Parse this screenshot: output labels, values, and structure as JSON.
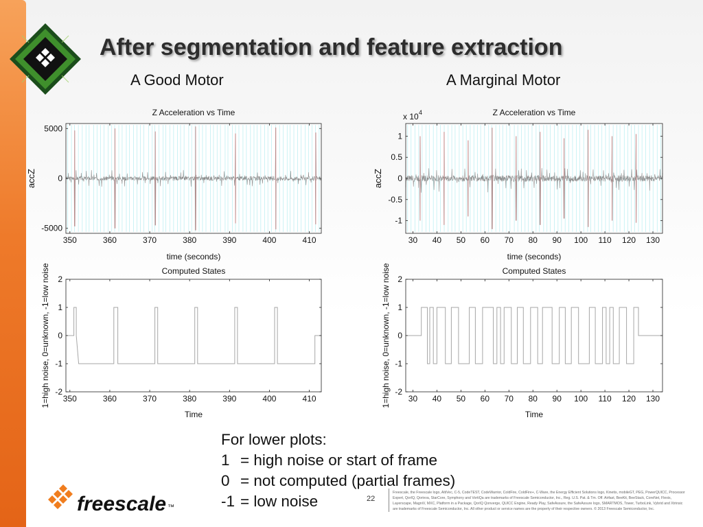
{
  "slide": {
    "title": "After segmentation and feature extraction",
    "left_heading": "A Good Motor",
    "right_heading": "A Marginal Motor",
    "page_number": "22",
    "legal": "Freescale, the Freescale logo, AltiVec, C-5, CodeTEST, CodeWarrior, ColdFire, ColdFire+, C-Ware, the Energy Efficient Solutions logo, Kinetis, mobileGT, PEG, PowerQUICC, Processor Expert, QorIQ, Qorivva, StarCore, Symphony and VortiQa are trademarks of Freescale Semiconductor, Inc., Reg. U.S. Pat. & Tm. Off. Airfast, BeeKit, BeeStack, CoreNet, Flexis, Layerscape, MagniV, MXC, Platform in a Package, QorIQ Qonverge, QUICC Engine, Ready Play, SafeAssure, the SafeAssure logo, SMARTMOS, Tower, TurboLink, Vybrid and Xtrinsic are trademarks of Freescale Semiconductor, Inc. All other product or service names are the property of their respective owners. © 2013 Freescale Semiconductor, Inc.",
    "logo_text": "freescale",
    "logo_tm": "™",
    "icons": [
      "chip-logo-icon",
      "freescale-logo-icon"
    ]
  },
  "notes": {
    "heading": "For lower plots:",
    "items": [
      {
        "value": "1",
        "text": "= high noise or start of frame"
      },
      {
        "value": "0",
        "text": "= not computed (partial frames)"
      },
      {
        "value": "-1",
        "text": "= low noise"
      }
    ]
  },
  "chart_data": [
    {
      "id": "good-accel",
      "type": "line",
      "title": "Z Acceleration vs Time",
      "xlabel": "time (seconds)",
      "ylabel": "accZ",
      "xlim": [
        349,
        413
      ],
      "ylim": [
        -5500,
        5500
      ],
      "xticks": [
        350,
        360,
        370,
        380,
        390,
        400,
        410
      ],
      "yticks": [
        -5000,
        0,
        5000
      ],
      "ytick_labels": [
        "-5000",
        "0",
        "5000"
      ],
      "exponent_label": "",
      "series": [
        {
          "color": "#8c8c8c",
          "baseline": 0,
          "spikes": [
            {
              "x": 351.2,
              "amp": 4800
            },
            {
              "x": 361.3,
              "amp": 5000
            },
            {
              "x": 371.4,
              "amp": 4700
            },
            {
              "x": 381.5,
              "amp": 5200
            },
            {
              "x": 391.5,
              "amp": 4500
            },
            {
              "x": 401.6,
              "amp": 5100
            },
            {
              "x": 411.6,
              "amp": 4600
            }
          ],
          "noise_amp": 700
        }
      ],
      "grid": false
    },
    {
      "id": "good-states",
      "type": "line",
      "title": "Computed States",
      "xlabel": "Time",
      "ylabel": "1=high noise, 0=unknown, -1=low noise",
      "xlim": [
        349,
        413
      ],
      "ylim": [
        -2,
        2
      ],
      "xticks": [
        350,
        360,
        370,
        380,
        390,
        400,
        410
      ],
      "yticks": [
        -2,
        -1,
        0,
        1,
        2
      ],
      "ytick_labels": [
        "-2",
        "-1",
        "0",
        "1",
        "2"
      ],
      "series": [
        {
          "color": "#a6a6a6",
          "x": [
            349,
            351.0,
            351.0,
            351.6,
            351.6,
            352.2,
            352.2,
            361.0,
            361.0,
            362.0,
            362.0,
            371.3,
            371.3,
            372.0,
            372.0,
            381.3,
            381.3,
            382.0,
            382.0,
            391.3,
            391.3,
            392.0,
            392.0,
            401.3,
            401.3,
            402.0,
            402.0,
            411.4,
            411.4,
            412.0,
            412.0,
            413
          ],
          "y": [
            0,
            0,
            1,
            1,
            0,
            -1,
            -1,
            -1,
            1,
            1,
            -1,
            -1,
            1,
            1,
            -1,
            -1,
            1,
            1,
            -1,
            -1,
            1,
            1,
            -1,
            -1,
            1,
            1,
            -1,
            -1,
            0,
            0,
            0,
            0
          ]
        }
      ],
      "grid": false
    },
    {
      "id": "marginal-accel",
      "type": "line",
      "title": "Z Acceleration vs Time",
      "xlabel": "time (seconds)",
      "ylabel": "accZ",
      "exponent_label": "x 10",
      "exponent_power": "4",
      "xlim": [
        27,
        134
      ],
      "ylim": [
        -1.3,
        1.3
      ],
      "xticks": [
        30,
        40,
        50,
        60,
        70,
        80,
        90,
        100,
        110,
        120,
        130
      ],
      "yticks": [
        -1,
        -0.5,
        0,
        0.5,
        1
      ],
      "ytick_labels": [
        "-1",
        "-0.5",
        "0",
        "0.5",
        "1"
      ],
      "series": [
        {
          "color": "#8c8c8c",
          "baseline": 0,
          "spikes": [
            {
              "x": 33,
              "amp": 1.0
            },
            {
              "x": 43,
              "amp": 1.1
            },
            {
              "x": 53,
              "amp": 0.9
            },
            {
              "x": 63,
              "amp": 1.2
            },
            {
              "x": 73,
              "amp": 1.0
            },
            {
              "x": 83,
              "amp": 1.1
            },
            {
              "x": 93,
              "amp": 0.95
            },
            {
              "x": 103,
              "amp": 1.15
            },
            {
              "x": 113,
              "amp": 1.0
            },
            {
              "x": 123,
              "amp": 1.05
            }
          ],
          "noise_amp": 0.25
        }
      ],
      "grid": false
    },
    {
      "id": "marginal-states",
      "type": "line",
      "title": "Computed States",
      "xlabel": "Time",
      "ylabel": "1=high noise, 0=unknown, -1=low noise",
      "xlim": [
        27,
        134
      ],
      "ylim": [
        -2,
        2
      ],
      "xticks": [
        30,
        40,
        50,
        60,
        70,
        80,
        90,
        100,
        110,
        120,
        130
      ],
      "yticks": [
        -2,
        -1,
        0,
        1,
        2
      ],
      "ytick_labels": [
        "-2",
        "-1",
        "0",
        "1",
        "2"
      ],
      "series": [
        {
          "color": "#a6a6a6",
          "x": [
            27,
            30.5,
            30.5,
            31.5,
            31.5,
            33.5,
            33.5,
            36.0,
            36.0,
            37.0,
            37.0,
            38.5,
            38.5,
            40.0,
            40.0,
            43.5,
            43.5,
            46.0,
            46.0,
            49.0,
            49.0,
            53.5,
            53.5,
            56.0,
            56.0,
            59.0,
            59.0,
            63.5,
            63.5,
            65.0,
            65.0,
            66.5,
            66.5,
            68.0,
            68.0,
            71.0,
            71.0,
            73.5,
            73.5,
            76.0,
            76.0,
            79.0,
            79.0,
            82.0,
            82.0,
            84.0,
            84.0,
            88.0,
            88.0,
            91.0,
            91.0,
            93.5,
            93.5,
            96.0,
            96.0,
            99.0,
            99.0,
            103.5,
            103.5,
            106.0,
            106.0,
            109.0,
            109.0,
            110.5,
            110.5,
            112.0,
            112.0,
            113.5,
            113.5,
            116.0,
            116.0,
            119.0,
            119.0,
            122.0,
            122.0,
            124.0,
            124.0,
            134
          ],
          "y": [
            0,
            0,
            0,
            0,
            0,
            0,
            1,
            1,
            -1,
            -1,
            1,
            1,
            -1,
            -1,
            1,
            1,
            -1,
            -1,
            1,
            1,
            -1,
            -1,
            1,
            1,
            -1,
            -1,
            1,
            1,
            -1,
            -1,
            1,
            1,
            -1,
            -1,
            1,
            1,
            -1,
            -1,
            1,
            1,
            -1,
            -1,
            1,
            1,
            -1,
            -1,
            1,
            1,
            -1,
            -1,
            1,
            1,
            -1,
            -1,
            1,
            1,
            -1,
            -1,
            1,
            1,
            -1,
            -1,
            1,
            1,
            -1,
            -1,
            1,
            1,
            -1,
            -1,
            1,
            1,
            -1,
            -1,
            1,
            1,
            0,
            0
          ]
        }
      ],
      "grid": false
    }
  ]
}
